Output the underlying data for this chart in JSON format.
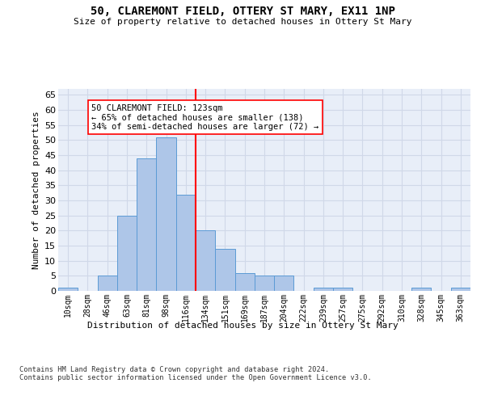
{
  "title": "50, CLAREMONT FIELD, OTTERY ST MARY, EX11 1NP",
  "subtitle": "Size of property relative to detached houses in Ottery St Mary",
  "xlabel": "Distribution of detached houses by size in Ottery St Mary",
  "ylabel": "Number of detached properties",
  "bin_labels": [
    "10sqm",
    "28sqm",
    "46sqm",
    "63sqm",
    "81sqm",
    "98sqm",
    "116sqm",
    "134sqm",
    "151sqm",
    "169sqm",
    "187sqm",
    "204sqm",
    "222sqm",
    "239sqm",
    "257sqm",
    "275sqm",
    "292sqm",
    "310sqm",
    "328sqm",
    "345sqm",
    "363sqm"
  ],
  "bar_heights": [
    1,
    0,
    5,
    25,
    44,
    51,
    32,
    20,
    14,
    6,
    5,
    5,
    0,
    1,
    1,
    0,
    0,
    0,
    1,
    0,
    1
  ],
  "bar_color": "#aec6e8",
  "bar_edge_color": "#5b9bd5",
  "vline_color": "red",
  "annotation_text": "50 CLAREMONT FIELD: 123sqm\n← 65% of detached houses are smaller (138)\n34% of semi-detached houses are larger (72) →",
  "annotation_box_color": "white",
  "annotation_box_edge": "red",
  "grid_color": "#d0d8e8",
  "background_color": "#e8eef8",
  "yticks": [
    0,
    5,
    10,
    15,
    20,
    25,
    30,
    35,
    40,
    45,
    50,
    55,
    60,
    65
  ],
  "ylim": [
    0,
    67
  ],
  "footer": "Contains HM Land Registry data © Crown copyright and database right 2024.\nContains public sector information licensed under the Open Government Licence v3.0."
}
